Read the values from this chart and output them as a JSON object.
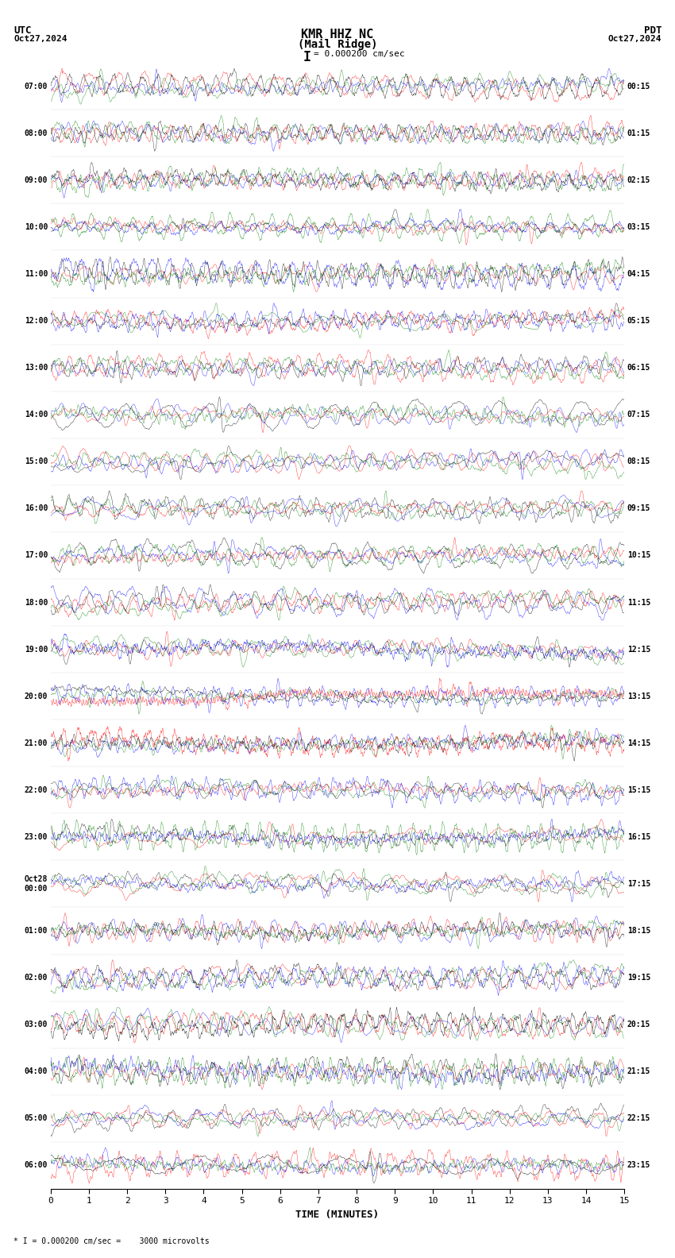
{
  "title_line1": "KMR HHZ NC",
  "title_line2": "(Mail Ridge)",
  "scale_label": "= 0.000200 cm/sec",
  "utc_label": "UTC",
  "utc_date": "Oct27,2024",
  "pdt_label": "PDT",
  "pdt_date": "Oct27,2024",
  "footer_label": "* I = 0.000200 cm/sec =    3000 microvolts",
  "xlabel": "TIME (MINUTES)",
  "left_times": [
    "07:00",
    "08:00",
    "09:00",
    "10:00",
    "11:00",
    "12:00",
    "13:00",
    "14:00",
    "15:00",
    "16:00",
    "17:00",
    "18:00",
    "19:00",
    "20:00",
    "21:00",
    "22:00",
    "23:00",
    "Oct28\n00:00",
    "01:00",
    "02:00",
    "03:00",
    "04:00",
    "05:00",
    "06:00"
  ],
  "right_times": [
    "00:15",
    "01:15",
    "02:15",
    "03:15",
    "04:15",
    "05:15",
    "06:15",
    "07:15",
    "08:15",
    "09:15",
    "10:15",
    "11:15",
    "12:15",
    "13:15",
    "14:15",
    "15:15",
    "16:15",
    "17:15",
    "18:15",
    "19:15",
    "20:15",
    "21:15",
    "22:15",
    "23:15"
  ],
  "n_rows": 24,
  "minutes_per_row": 15,
  "x_ticks": [
    0,
    1,
    2,
    3,
    4,
    5,
    6,
    7,
    8,
    9,
    10,
    11,
    12,
    13,
    14,
    15
  ],
  "bg_color": "#ffffff",
  "colors": [
    "red",
    "blue",
    "green",
    "black"
  ],
  "figwidth": 8.5,
  "figheight": 15.84,
  "dpi": 100
}
